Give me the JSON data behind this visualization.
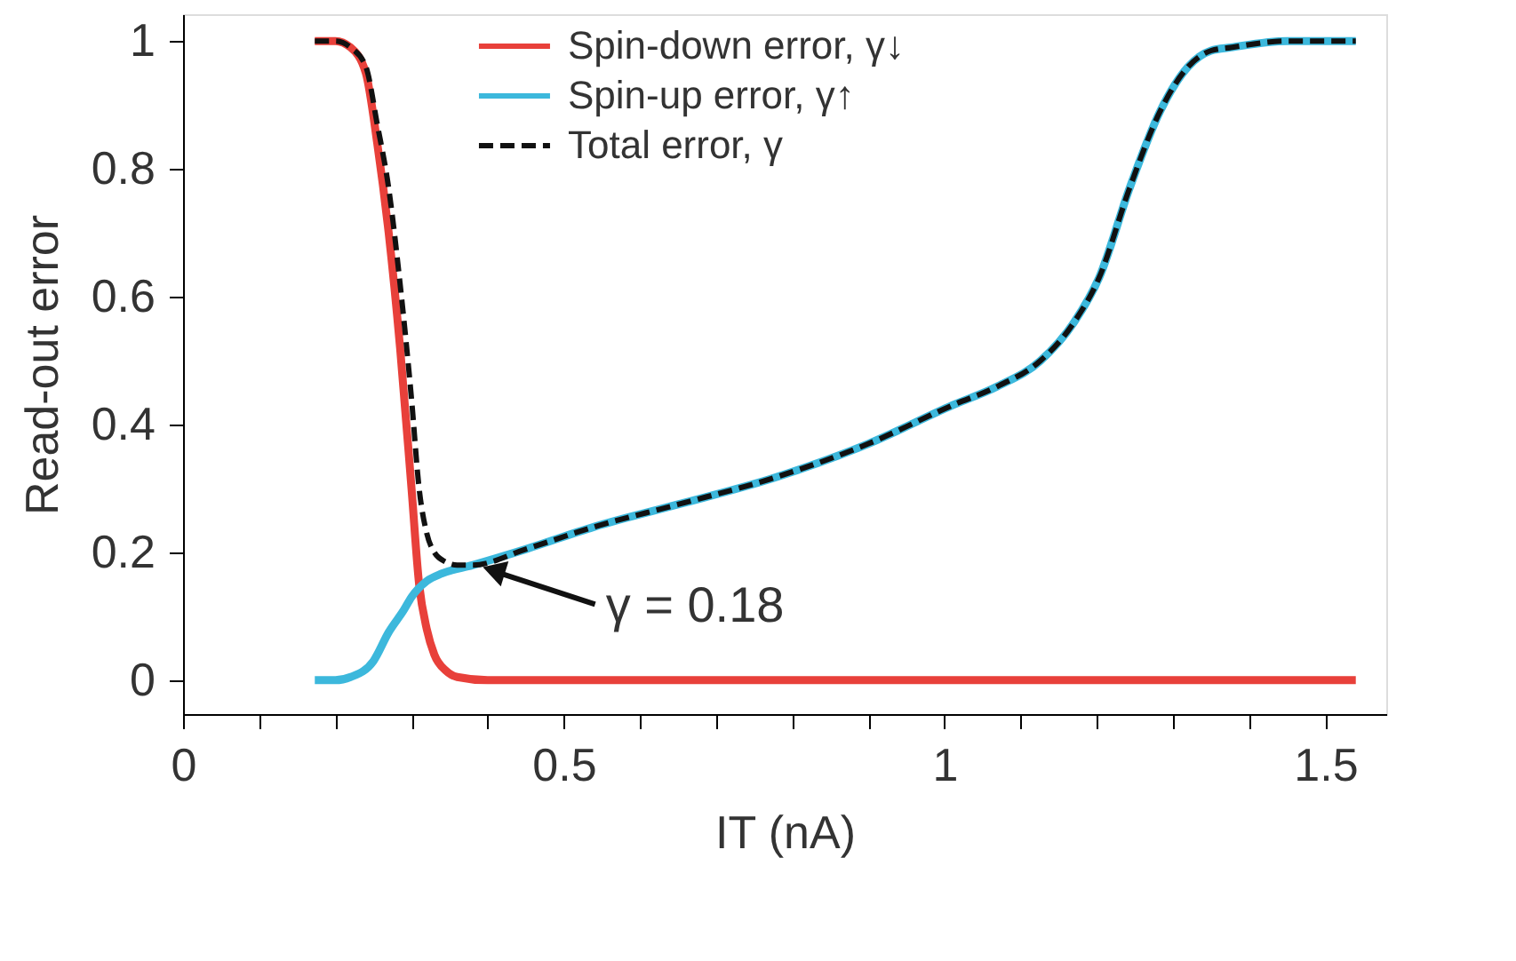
{
  "chart_data": {
    "type": "line",
    "xlabel": "IT (nA)",
    "ylabel": "Read-out error",
    "xlim": [
      0,
      1.58
    ],
    "ylim": [
      -0.053,
      1.042
    ],
    "xticks": [
      0,
      {
        "value": 0.1,
        "label": null
      },
      {
        "value": 0.2,
        "label": null
      },
      {
        "value": 0.3,
        "label": null
      },
      {
        "value": 0.4,
        "label": null
      },
      0.5,
      {
        "value": 0.6,
        "label": null
      },
      {
        "value": 0.7,
        "label": null
      },
      {
        "value": 0.8,
        "label": null
      },
      {
        "value": 0.9,
        "label": null
      },
      1,
      {
        "value": 1.1,
        "label": null
      },
      {
        "value": 1.2,
        "label": null
      },
      {
        "value": 1.3,
        "label": null
      },
      {
        "value": 1.4,
        "label": null
      },
      1.5
    ],
    "yticks": [
      0,
      0.2,
      0.4,
      0.6,
      0.8,
      1
    ],
    "grid": false,
    "legend": "top",
    "marker": "none",
    "series": [
      {
        "name": "Spin-down error, γ↓",
        "color": "#e8403a",
        "line_style": "solid",
        "x": [
          0.173,
          0.2,
          0.22,
          0.24,
          0.255,
          0.27,
          0.285,
          0.3,
          0.31,
          0.32,
          0.33,
          0.345,
          0.36,
          0.4,
          0.6,
          1.0,
          1.54
        ],
        "values": [
          1,
          1,
          0.99,
          0.95,
          0.84,
          0.7,
          0.52,
          0.3,
          0.15,
          0.08,
          0.04,
          0.015,
          0.005,
          0,
          0,
          0,
          0
        ]
      },
      {
        "name": "Spin-up error, γ↑",
        "color": "#3cb8dc",
        "line_style": "solid",
        "x": [
          0.173,
          0.2,
          0.22,
          0.25,
          0.27,
          0.29,
          0.3,
          0.32,
          0.34,
          0.38,
          0.45,
          0.54,
          0.65,
          0.777,
          0.9,
          1.01,
          1.07,
          1.126,
          1.17,
          1.203,
          1.243,
          1.283,
          1.32,
          1.35,
          1.376,
          1.45,
          1.54
        ],
        "values": [
          0,
          0,
          0.005,
          0.03,
          0.075,
          0.11,
          0.13,
          0.155,
          0.167,
          0.18,
          0.205,
          0.24,
          0.275,
          0.317,
          0.37,
          0.43,
          0.46,
          0.5,
          0.56,
          0.63,
          0.77,
          0.89,
          0.96,
          0.985,
          0.99,
          1,
          1
        ]
      },
      {
        "name": "Total error, γ",
        "color": "#111111",
        "line_style": "dashed",
        "x": [
          0.173,
          0.2,
          0.22,
          0.24,
          0.255,
          0.27,
          0.285,
          0.3,
          0.31,
          0.32,
          0.33,
          0.345,
          0.36,
          0.38,
          0.45,
          0.54,
          0.65,
          0.777,
          0.9,
          1.01,
          1.07,
          1.126,
          1.17,
          1.203,
          1.243,
          1.283,
          1.32,
          1.35,
          1.376,
          1.45,
          1.54
        ],
        "values": [
          1,
          1,
          0.99,
          0.96,
          0.87,
          0.77,
          0.62,
          0.44,
          0.3,
          0.23,
          0.2,
          0.185,
          0.18,
          0.18,
          0.205,
          0.24,
          0.275,
          0.317,
          0.37,
          0.43,
          0.46,
          0.5,
          0.56,
          0.63,
          0.77,
          0.89,
          0.96,
          0.985,
          0.99,
          1,
          1
        ]
      }
    ],
    "annotations": [
      {
        "text": "γ = 0.18",
        "x": 0.38,
        "y": 0.18
      }
    ]
  }
}
